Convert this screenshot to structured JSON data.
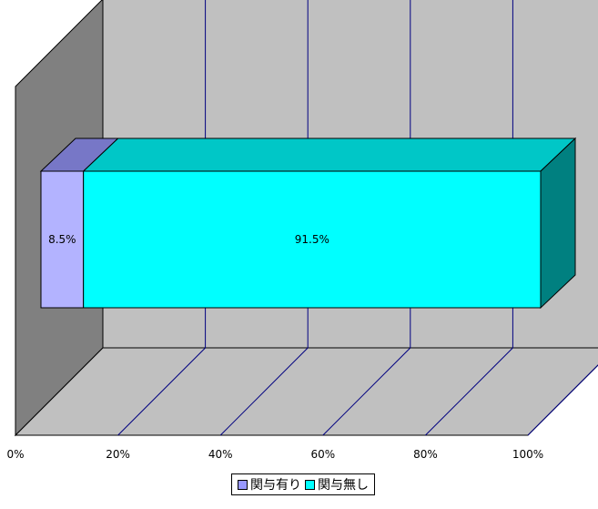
{
  "chart_data": {
    "type": "bar",
    "orientation": "horizontal",
    "stacked": true,
    "percent_stacked": true,
    "three_d": true,
    "categories": [
      ""
    ],
    "series": [
      {
        "name": "関与有り",
        "values": [
          8.5
        ],
        "label": "8.5%",
        "color": "#9999ff"
      },
      {
        "name": "関与無し",
        "values": [
          91.5
        ],
        "label": "91.5%",
        "color": "#00ffff"
      }
    ],
    "xlim": [
      0,
      100
    ],
    "x_ticks": [
      "0%",
      "20%",
      "40%",
      "60%",
      "80%",
      "100%"
    ],
    "grid": true,
    "legend_position": "bottom",
    "colors": {
      "wall": "#c0c0c0",
      "side_wall": "#808080",
      "grid": "#000080"
    }
  }
}
